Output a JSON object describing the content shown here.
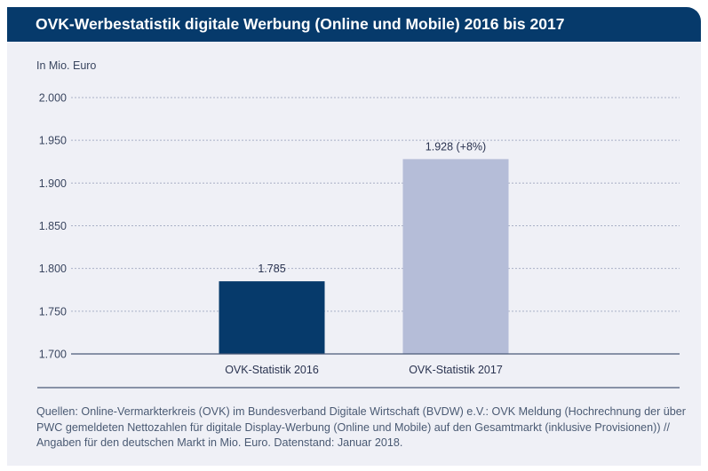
{
  "header": {
    "title": "OVK-Werbestatistik digitale Werbung (Online und Mobile) 2016 bis 2017"
  },
  "chart_data": {
    "type": "bar",
    "title": "OVK-Werbestatistik digitale Werbung (Online und Mobile) 2016 bis 2017",
    "ylabel": "In Mio. Euro",
    "xlabel": "",
    "categories": [
      "OVK-Statistik 2016",
      "OVK-Statistik 2017"
    ],
    "values": [
      1785,
      1928
    ],
    "data_labels": [
      "1.785",
      "1.928 (+8%)"
    ],
    "colors": [
      "#063a6b",
      "#b5bdd8"
    ],
    "ylim": [
      1700,
      2000
    ],
    "yticks": [
      1700,
      1750,
      1800,
      1850,
      1900,
      1950,
      2000
    ],
    "ytick_labels": [
      "1.700",
      "1.750",
      "1.800",
      "1.850",
      "1.900",
      "1.950",
      "2.000"
    ],
    "grid": true
  },
  "footer": {
    "source": "Quellen: Online-Vermarkterkreis (OVK) im Bundesverband Digitale Wirtschaft (BVDW) e.V.: OVK Meldung (Hochrechnung der über PWC gemeldeten Nettozahlen für digitale Display-Werbung (Online und Mobile) auf den Gesamtmarkt (inklusive Provisionen)) // Angaben für den deutschen Markt in Mio. Euro. Datenstand: Januar 2018."
  }
}
